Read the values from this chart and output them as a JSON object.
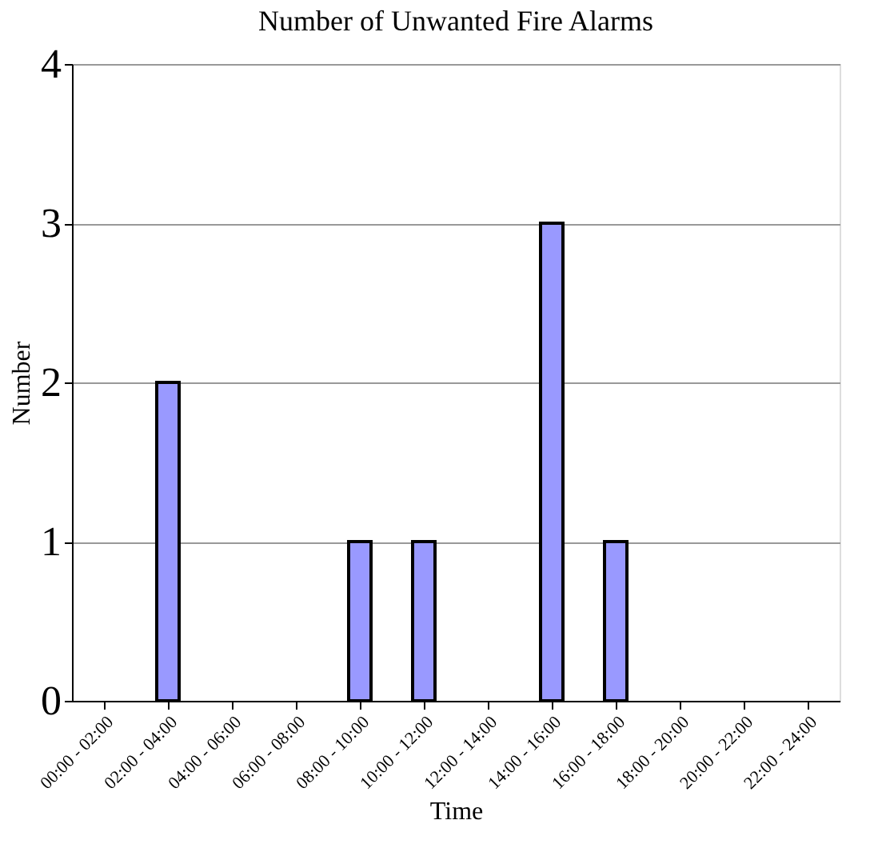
{
  "chart_data": {
    "type": "bar",
    "title": "Number of Unwanted Fire Alarms",
    "xlabel": "Time",
    "ylabel": "Number",
    "categories": [
      "00:00 - 02:00",
      "02:00 - 04:00",
      "04:00 - 06:00",
      "06:00 - 08:00",
      "08:00 - 10:00",
      "10:00 - 12:00",
      "12:00 - 14:00",
      "14:00 - 16:00",
      "16:00 - 18:00",
      "18:00 - 20:00",
      "20:00 - 22:00",
      "22:00 - 24:00"
    ],
    "values": [
      0,
      2,
      0,
      0,
      1,
      1,
      0,
      3,
      1,
      0,
      0,
      0
    ],
    "color": "#9999ff",
    "ylim": [
      0,
      4
    ],
    "yticks": [
      0,
      1,
      2,
      3,
      4
    ],
    "grid": "y"
  }
}
